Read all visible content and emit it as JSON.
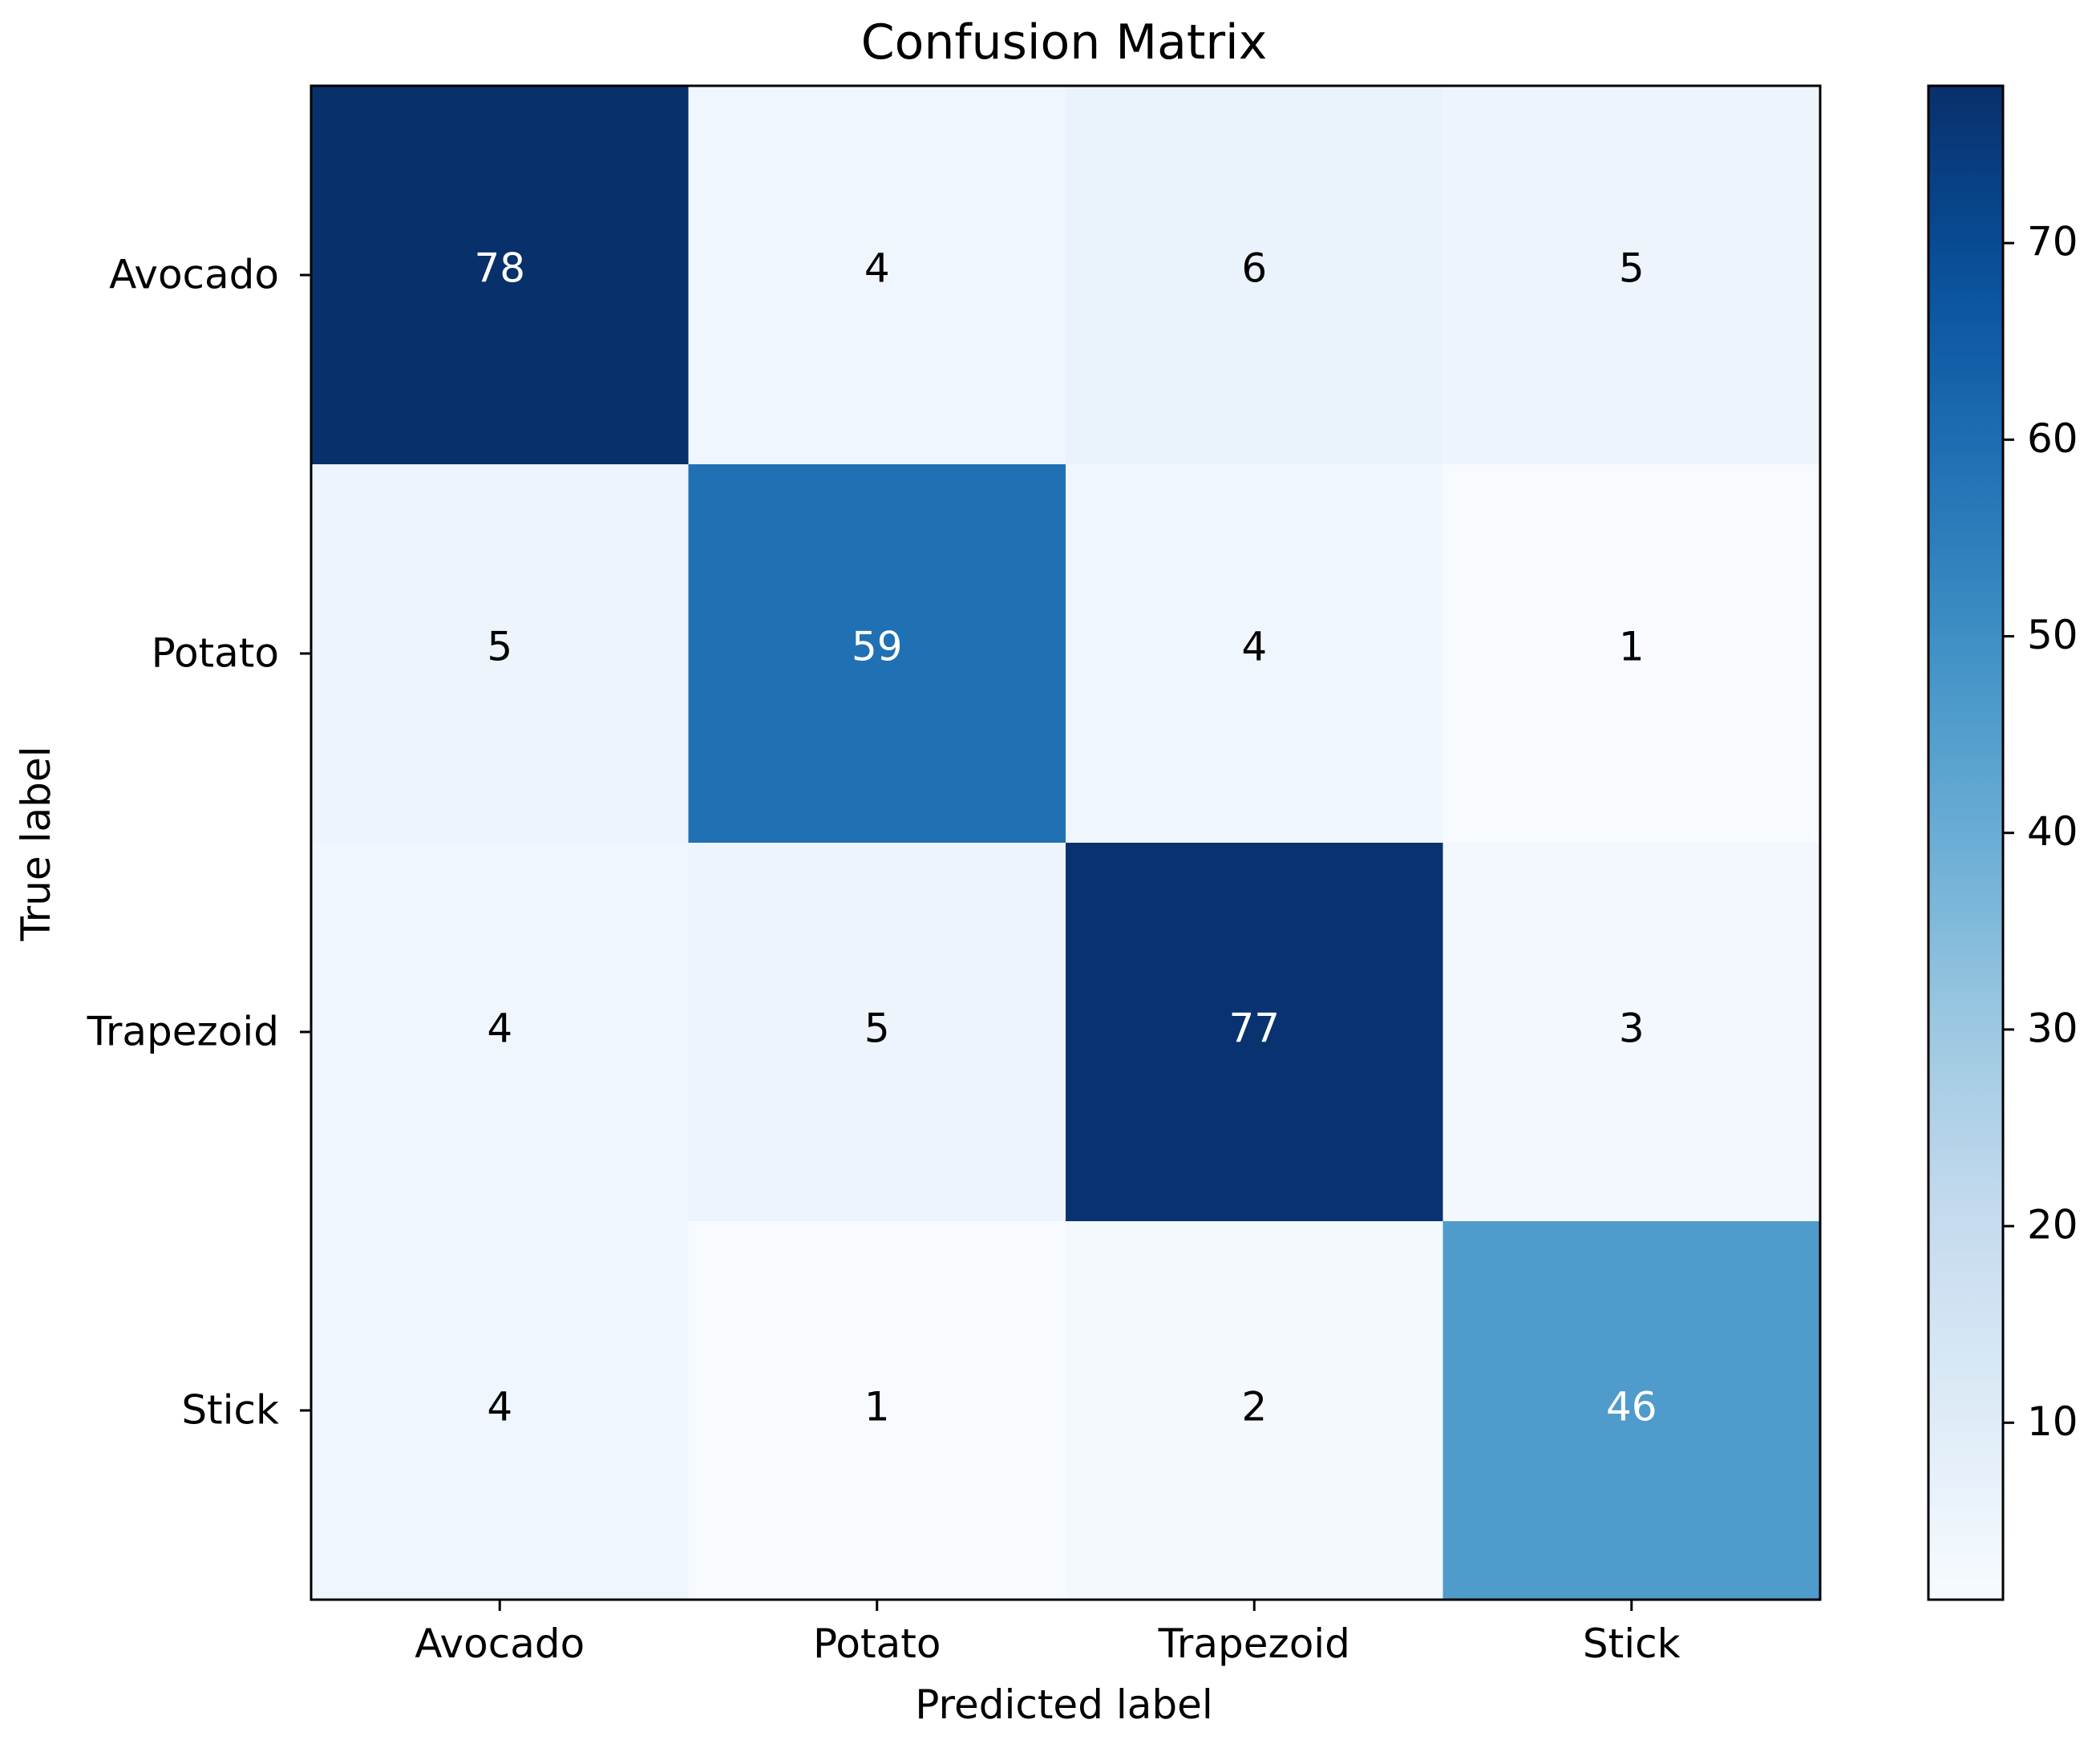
{
  "chart_data": {
    "type": "heatmap",
    "title": "Confusion Matrix",
    "xlabel": "Predicted label",
    "ylabel": "True label",
    "x_categories": [
      "Avocado",
      "Potato",
      "Trapezoid",
      "Stick"
    ],
    "y_categories": [
      "Avocado",
      "Potato",
      "Trapezoid",
      "Stick"
    ],
    "matrix": [
      [
        78,
        4,
        6,
        5
      ],
      [
        5,
        59,
        4,
        1
      ],
      [
        4,
        5,
        77,
        3
      ],
      [
        4,
        1,
        2,
        46
      ]
    ],
    "colormap": "Blues",
    "color_range": [
      1,
      78
    ],
    "colorbar_ticks": [
      10,
      20,
      30,
      40,
      50,
      60,
      70
    ],
    "text_color_dark": "#000000",
    "text_color_light": "#ffffff",
    "grid": false
  }
}
